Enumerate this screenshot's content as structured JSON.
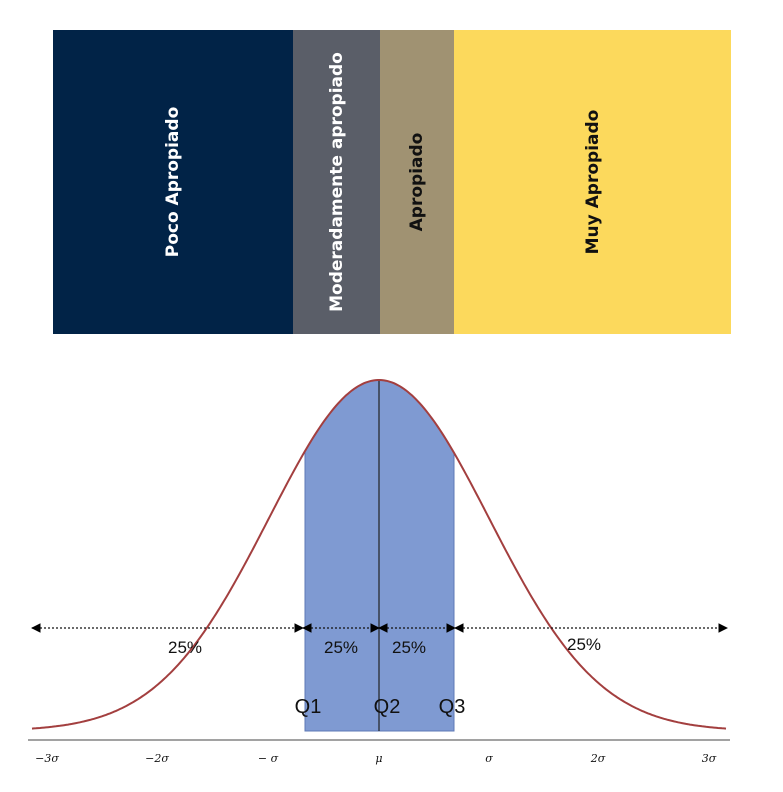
{
  "bands": [
    {
      "label": "Poco Apropiado",
      "color": "#012347",
      "text_color": "#ffffff"
    },
    {
      "label": "Moderadamente apropiado",
      "color": "#5a5e68",
      "text_color": "#ffffff"
    },
    {
      "label": "Apropiado",
      "color": "#a09272",
      "text_color": "#111111"
    },
    {
      "label": "Muy Apropiado",
      "color": "#fcd95c",
      "text_color": "#111111"
    }
  ],
  "curve": {
    "line_color": "#a33f3f",
    "fill_color": "#7f9ad2",
    "percent_labels": [
      "25%",
      "25%",
      "25%",
      "25%"
    ],
    "quartiles": [
      "Q1",
      "Q2",
      "Q3"
    ],
    "ticks": [
      "−3σ",
      "−2σ",
      "− σ",
      "μ",
      "σ",
      "2σ",
      "3σ"
    ]
  }
}
